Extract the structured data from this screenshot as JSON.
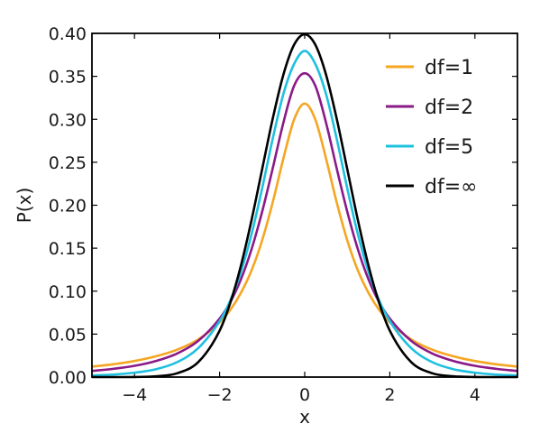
{
  "chart_data": {
    "type": "line",
    "title": "",
    "xlabel": "x",
    "ylabel": "P(x)",
    "xlim": [
      -5,
      5
    ],
    "ylim": [
      0.0,
      0.4
    ],
    "grid": false,
    "legend_position": "top-right",
    "x_ticks": [
      -4,
      -2,
      0,
      2,
      4
    ],
    "x_tick_labels": [
      "−4",
      "−2",
      "0",
      "2",
      "4"
    ],
    "y_ticks": [
      0.0,
      0.05,
      0.1,
      0.15,
      0.2,
      0.25,
      0.3,
      0.35,
      0.4
    ],
    "y_tick_labels": [
      "0.00",
      "0.05",
      "0.10",
      "0.15",
      "0.20",
      "0.25",
      "0.30",
      "0.35",
      "0.40"
    ],
    "x": [
      -5,
      -4.5,
      -4,
      -3.5,
      -3,
      -2.5,
      -2,
      -1.75,
      -1.5,
      -1.25,
      -1,
      -0.75,
      -0.5,
      -0.25,
      0,
      0.25,
      0.5,
      0.75,
      1,
      1.25,
      1.5,
      1.75,
      2,
      2.5,
      3,
      3.5,
      4,
      4.5,
      5
    ],
    "series": [
      {
        "name": "df=1",
        "color": "#f5a623",
        "values": [
          0.0122,
          0.0149,
          0.0187,
          0.0241,
          0.0318,
          0.0439,
          0.0637,
          0.0781,
          0.0979,
          0.124,
          0.1592,
          0.2037,
          0.2546,
          0.2996,
          0.3183,
          0.2996,
          0.2546,
          0.2037,
          0.1592,
          0.124,
          0.0979,
          0.0781,
          0.0637,
          0.0439,
          0.0318,
          0.0241,
          0.0187,
          0.0149,
          0.0122
        ]
      },
      {
        "name": "df=2",
        "color": "#8b1a89",
        "values": [
          0.0071,
          0.0096,
          0.0131,
          0.0187,
          0.0274,
          0.0422,
          0.068,
          0.0871,
          0.1136,
          0.1487,
          0.1925,
          0.2433,
          0.2963,
          0.3389,
          0.3536,
          0.3389,
          0.2963,
          0.2433,
          0.1925,
          0.1487,
          0.1136,
          0.0871,
          0.068,
          0.0422,
          0.0274,
          0.0187,
          0.0131,
          0.0096,
          0.0071
        ]
      },
      {
        "name": "df=5",
        "color": "#1ec0e0",
        "values": [
          0.0018,
          0.0029,
          0.0051,
          0.0091,
          0.0173,
          0.0338,
          0.0651,
          0.0891,
          0.1223,
          0.1662,
          0.2197,
          0.2778,
          0.3296,
          0.3643,
          0.3796,
          0.3643,
          0.3296,
          0.2778,
          0.2197,
          0.1662,
          0.1223,
          0.0891,
          0.0651,
          0.0338,
          0.0173,
          0.0091,
          0.0051,
          0.0029,
          0.0018
        ]
      },
      {
        "name": "df=∞",
        "color": "#000000",
        "values": [
          0.0,
          0.0,
          0.0001,
          0.0009,
          0.0044,
          0.0175,
          0.054,
          0.0863,
          0.1295,
          0.1826,
          0.242,
          0.3011,
          0.3521,
          0.3867,
          0.3989,
          0.3867,
          0.3521,
          0.3011,
          0.242,
          0.1826,
          0.1295,
          0.0863,
          0.054,
          0.0175,
          0.0044,
          0.0009,
          0.0001,
          0.0,
          0.0
        ]
      }
    ]
  }
}
